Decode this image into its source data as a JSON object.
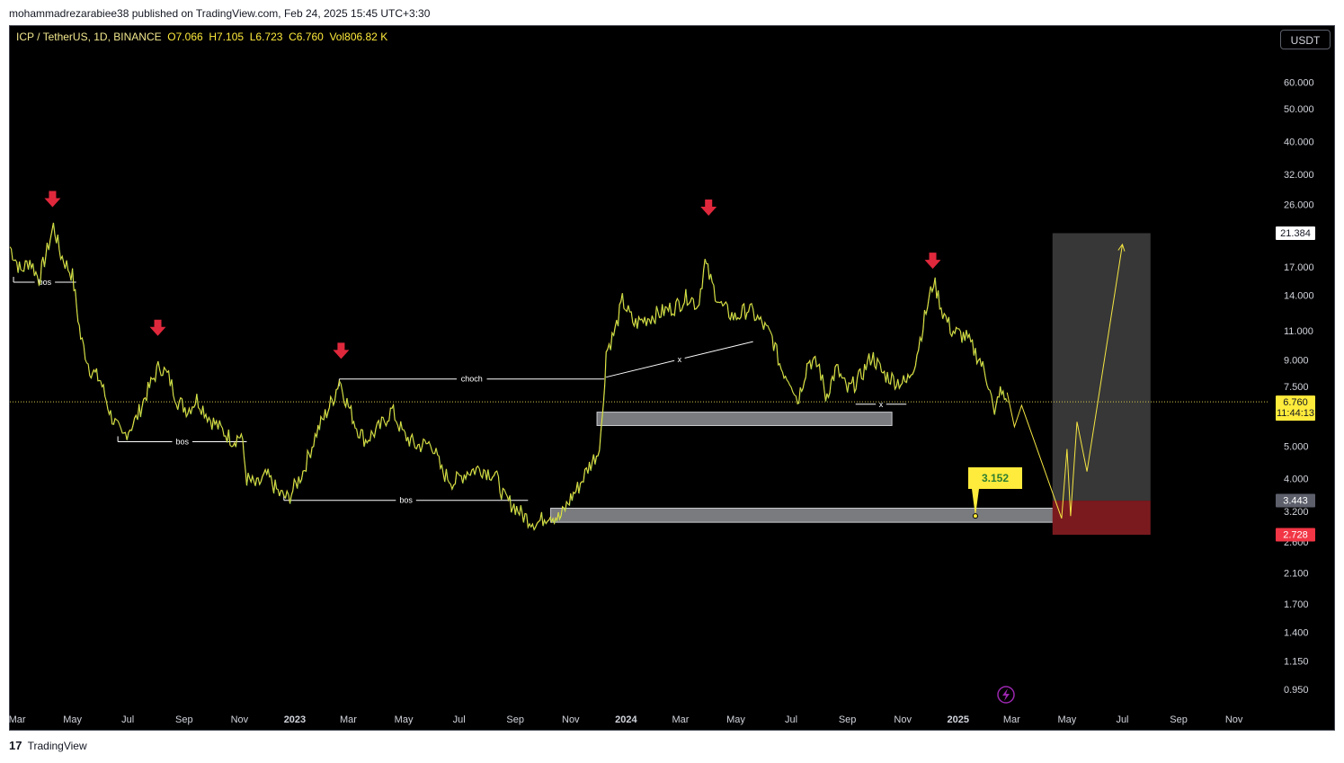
{
  "header": {
    "published_by": "mohammadrezarabiee38 published on TradingView.com, Feb 24, 2025 15:45 UTC+3:30"
  },
  "legend": {
    "symbol": "ICP / TetherUS, 1D, BINANCE",
    "open": "O7.066",
    "high": "H7.105",
    "low": "L6.723",
    "close": "C6.760",
    "volume": "Vol806.82 K"
  },
  "currency_button": "USDT",
  "footer": {
    "brand": "TradingView"
  },
  "colors": {
    "price_line": "#f5e642",
    "arrow": "#e0283c",
    "zone_gray": "#8f9195",
    "target_box": "#3a3a3a",
    "stop_box": "#7a1a1f"
  },
  "chart_data": {
    "type": "line",
    "yscale": "log",
    "ylim": [
      0.85,
      75
    ],
    "y_ticks": [
      60,
      50,
      40,
      32,
      26,
      17,
      14,
      11,
      9,
      7.5,
      5,
      4,
      3.2,
      2.6,
      2.1,
      1.7,
      1.4,
      1.15,
      0.95
    ],
    "y_tick_labels": [
      "60.000",
      "50.000",
      "40.000",
      "32.000",
      "26.000",
      "17.000",
      "14.000",
      "11.000",
      "9.000",
      "7.500",
      "5.000",
      "4.000",
      "3.200",
      "2.600",
      "2.100",
      "1.700",
      "1.400",
      "1.150",
      "0.950"
    ],
    "x_range": [
      "2022-02-21",
      "2025-12-10"
    ],
    "x_ticks": [
      {
        "date": "2022-03-01",
        "label": "Mar"
      },
      {
        "date": "2022-05-01",
        "label": "May"
      },
      {
        "date": "2022-07-01",
        "label": "Jul"
      },
      {
        "date": "2022-09-01",
        "label": "Sep"
      },
      {
        "date": "2022-11-01",
        "label": "Nov"
      },
      {
        "date": "2023-01-01",
        "label": "2023",
        "bold": true
      },
      {
        "date": "2023-03-01",
        "label": "Mar"
      },
      {
        "date": "2023-05-01",
        "label": "May"
      },
      {
        "date": "2023-07-01",
        "label": "Jul"
      },
      {
        "date": "2023-09-01",
        "label": "Sep"
      },
      {
        "date": "2023-11-01",
        "label": "Nov"
      },
      {
        "date": "2024-01-01",
        "label": "2024",
        "bold": true
      },
      {
        "date": "2024-03-01",
        "label": "Mar"
      },
      {
        "date": "2024-05-01",
        "label": "May"
      },
      {
        "date": "2024-07-01",
        "label": "Jul"
      },
      {
        "date": "2024-09-01",
        "label": "Sep"
      },
      {
        "date": "2024-11-01",
        "label": "Nov"
      },
      {
        "date": "2025-01-01",
        "label": "2025",
        "bold": true
      },
      {
        "date": "2025-03-01",
        "label": "Mar"
      },
      {
        "date": "2025-05-01",
        "label": "May"
      },
      {
        "date": "2025-07-01",
        "label": "Jul"
      },
      {
        "date": "2025-09-01",
        "label": "Sep"
      },
      {
        "date": "2025-11-01",
        "label": "Nov"
      }
    ],
    "series": [
      {
        "points": [
          [
            "2022-02-21",
            19.5
          ],
          [
            "2022-03-05",
            16.5
          ],
          [
            "2022-03-15",
            17.8
          ],
          [
            "2022-03-25",
            15.6
          ],
          [
            "2022-04-03",
            19.0
          ],
          [
            "2022-04-10",
            22.5
          ],
          [
            "2022-04-18",
            18.5
          ],
          [
            "2022-05-01",
            16.0
          ],
          [
            "2022-05-10",
            10.5
          ],
          [
            "2022-05-20",
            8.5
          ],
          [
            "2022-06-01",
            7.8
          ],
          [
            "2022-06-12",
            6.2
          ],
          [
            "2022-06-25",
            5.3
          ],
          [
            "2022-07-10",
            6.0
          ],
          [
            "2022-07-20",
            7.0
          ],
          [
            "2022-08-05",
            8.7
          ],
          [
            "2022-08-15",
            8.0
          ],
          [
            "2022-08-25",
            6.8
          ],
          [
            "2022-09-05",
            6.4
          ],
          [
            "2022-09-15",
            6.9
          ],
          [
            "2022-09-30",
            6.0
          ],
          [
            "2022-10-15",
            5.5
          ],
          [
            "2022-10-25",
            5.2
          ],
          [
            "2022-11-03",
            5.4
          ],
          [
            "2022-11-09",
            4.0
          ],
          [
            "2022-11-20",
            3.8
          ],
          [
            "2022-12-01",
            4.1
          ],
          [
            "2022-12-15",
            3.6
          ],
          [
            "2022-12-25",
            3.5
          ],
          [
            "2023-01-10",
            4.2
          ],
          [
            "2023-01-25",
            5.5
          ],
          [
            "2023-02-05",
            6.3
          ],
          [
            "2023-02-14",
            7.1
          ],
          [
            "2023-02-19",
            7.9
          ],
          [
            "2023-02-26",
            6.9
          ],
          [
            "2023-03-10",
            5.7
          ],
          [
            "2023-03-20",
            5.2
          ],
          [
            "2023-04-05",
            5.7
          ],
          [
            "2023-04-18",
            6.4
          ],
          [
            "2023-05-01",
            5.4
          ],
          [
            "2023-05-15",
            5.0
          ],
          [
            "2023-06-01",
            5.1
          ],
          [
            "2023-06-12",
            4.2
          ],
          [
            "2023-06-25",
            3.9
          ],
          [
            "2023-07-10",
            4.2
          ],
          [
            "2023-07-25",
            4.3
          ],
          [
            "2023-08-10",
            4.1
          ],
          [
            "2023-08-20",
            3.5
          ],
          [
            "2023-09-01",
            3.3
          ],
          [
            "2023-09-10",
            3.1
          ],
          [
            "2023-09-25",
            2.95
          ],
          [
            "2023-10-08",
            3.15
          ],
          [
            "2023-10-20",
            3.05
          ],
          [
            "2023-11-01",
            3.5
          ],
          [
            "2023-11-10",
            3.8
          ],
          [
            "2023-11-20",
            4.3
          ],
          [
            "2023-12-01",
            4.8
          ],
          [
            "2023-12-06",
            6.0
          ],
          [
            "2023-12-10",
            9.5
          ],
          [
            "2023-12-20",
            11.0
          ],
          [
            "2023-12-28",
            13.5
          ],
          [
            "2024-01-10",
            11.5
          ],
          [
            "2024-01-25",
            12.0
          ],
          [
            "2024-02-10",
            12.5
          ],
          [
            "2024-02-25",
            13.0
          ],
          [
            "2024-03-10",
            14.0
          ],
          [
            "2024-03-20",
            13.0
          ],
          [
            "2024-03-28",
            17.5
          ],
          [
            "2024-04-05",
            15.0
          ],
          [
            "2024-04-15",
            13.0
          ],
          [
            "2024-04-30",
            12.0
          ],
          [
            "2024-05-15",
            12.8
          ],
          [
            "2024-05-30",
            11.5
          ],
          [
            "2024-06-10",
            10.5
          ],
          [
            "2024-06-20",
            8.5
          ],
          [
            "2024-07-01",
            7.8
          ],
          [
            "2024-07-08",
            6.8
          ],
          [
            "2024-07-20",
            9.0
          ],
          [
            "2024-08-01",
            8.6
          ],
          [
            "2024-08-08",
            7.0
          ],
          [
            "2024-08-20",
            8.5
          ],
          [
            "2024-09-01",
            7.3
          ],
          [
            "2024-09-15",
            8.0
          ],
          [
            "2024-09-28",
            9.3
          ],
          [
            "2024-10-10",
            8.2
          ],
          [
            "2024-10-25",
            7.8
          ],
          [
            "2024-11-05",
            7.7
          ],
          [
            "2024-11-15",
            9.0
          ],
          [
            "2024-11-25",
            12.0
          ],
          [
            "2024-12-05",
            15.5
          ],
          [
            "2024-12-15",
            12.5
          ],
          [
            "2024-12-25",
            11.0
          ],
          [
            "2025-01-10",
            10.5
          ],
          [
            "2025-01-25",
            9.0
          ],
          [
            "2025-02-05",
            7.5
          ],
          [
            "2025-02-10",
            6.0
          ],
          [
            "2025-02-15",
            7.3
          ],
          [
            "2025-02-24",
            6.76
          ]
        ]
      }
    ],
    "projection": [
      [
        "2025-02-24",
        7.2
      ],
      [
        "2025-03-04",
        5.7
      ],
      [
        "2025-03-12",
        6.6
      ],
      [
        "2025-04-25",
        3.05
      ],
      [
        "2025-05-01",
        4.9
      ],
      [
        "2025-05-05",
        3.1
      ],
      [
        "2025-05-12",
        5.9
      ],
      [
        "2025-05-23",
        4.2
      ],
      [
        "2025-07-01",
        19.8
      ]
    ],
    "arrows_at": [
      [
        "2022-04-09",
        26.5
      ],
      [
        "2022-08-03",
        11.0
      ],
      [
        "2023-02-21",
        9.4
      ],
      [
        "2024-04-01",
        25.0
      ],
      [
        "2024-12-04",
        17.4
      ]
    ],
    "structure_lines": [
      {
        "label": "bos",
        "from": [
          "2022-02-25",
          15.3
        ],
        "to": [
          "2022-05-05",
          15.3
        ]
      },
      {
        "label": "bos",
        "from": [
          "2022-06-20",
          5.15
        ],
        "to": [
          "2022-11-09",
          5.15
        ]
      },
      {
        "label": "bos",
        "from": [
          "2022-12-20",
          3.45
        ],
        "to": [
          "2023-09-15",
          3.45
        ]
      },
      {
        "label": "choch",
        "from": [
          "2023-02-19",
          7.9
        ],
        "to": [
          "2023-12-08",
          7.9
        ]
      },
      {
        "label": "x",
        "from": [
          "2023-12-10",
          8.0
        ],
        "to": [
          "2024-05-20",
          10.2
        ]
      },
      {
        "label": "x",
        "from": [
          "2024-09-10",
          6.65
        ],
        "to": [
          "2024-11-05",
          6.65
        ]
      }
    ],
    "zones": [
      {
        "from": "2023-11-30",
        "to": "2024-10-20",
        "top": 6.3,
        "bottom": 5.75
      },
      {
        "from": "2023-10-10",
        "to": "2025-06-15",
        "top": 3.27,
        "bottom": 2.97
      }
    ],
    "position_box": {
      "from": "2025-04-15",
      "to": "2025-08-01",
      "entry": 3.443,
      "target": 21.384,
      "stop": 2.728
    },
    "callout": {
      "label": "3.152",
      "date": "2025-01-20",
      "price": 3.1
    },
    "price_labels": {
      "target": "21.384",
      "last": "6.760",
      "countdown": "11:44:13",
      "entry": "3.443",
      "stop": "2.728"
    },
    "last_price": 6.76
  }
}
